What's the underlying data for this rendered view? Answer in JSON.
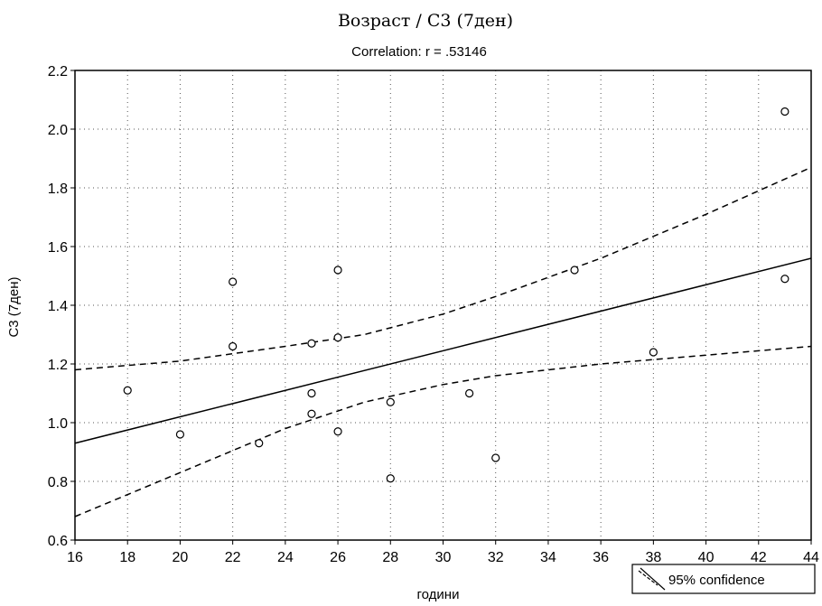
{
  "chart_data": {
    "type": "scatter",
    "title": "Возраст / С3 (7ден)",
    "subtitle": "Correlation: r = .53146",
    "xlabel": "години",
    "ylabel": "С3 (7ден)",
    "xlim": [
      16,
      44
    ],
    "ylim": [
      0.6,
      2.2
    ],
    "x_ticks": [
      16,
      18,
      20,
      22,
      24,
      26,
      28,
      30,
      32,
      34,
      36,
      38,
      40,
      42,
      44
    ],
    "y_ticks": [
      0.6,
      0.8,
      1.0,
      1.2,
      1.4,
      1.6,
      1.8,
      2.0,
      2.2
    ],
    "x_tick_labels": [
      "16",
      "18",
      "20",
      "22",
      "24",
      "26",
      "28",
      "30",
      "32",
      "34",
      "36",
      "38",
      "40",
      "42",
      "44"
    ],
    "y_tick_labels": [
      "0.6",
      "0.8",
      "1.0",
      "1.2",
      "1.4",
      "1.6",
      "1.8",
      "2.0",
      "2.2"
    ],
    "grid": true,
    "legend_position": "bottom-right",
    "legend": [
      {
        "label": "95% confidence"
      }
    ],
    "points": [
      {
        "x": 18,
        "y": 1.11
      },
      {
        "x": 20,
        "y": 0.96
      },
      {
        "x": 22,
        "y": 1.48
      },
      {
        "x": 22,
        "y": 1.26
      },
      {
        "x": 23,
        "y": 0.93
      },
      {
        "x": 25,
        "y": 1.27
      },
      {
        "x": 25,
        "y": 1.1
      },
      {
        "x": 25,
        "y": 1.03
      },
      {
        "x": 26,
        "y": 1.52
      },
      {
        "x": 26,
        "y": 1.29
      },
      {
        "x": 26,
        "y": 0.97
      },
      {
        "x": 28,
        "y": 1.07
      },
      {
        "x": 28,
        "y": 0.81
      },
      {
        "x": 31,
        "y": 1.1
      },
      {
        "x": 32,
        "y": 0.88
      },
      {
        "x": 35,
        "y": 1.52
      },
      {
        "x": 38,
        "y": 1.24
      },
      {
        "x": 43,
        "y": 2.06
      },
      {
        "x": 43,
        "y": 1.49
      }
    ],
    "regression_line": [
      {
        "x": 16,
        "y": 0.93
      },
      {
        "x": 44,
        "y": 1.56
      }
    ],
    "confidence_upper": [
      {
        "x": 16,
        "y": 1.18
      },
      {
        "x": 20,
        "y": 1.21
      },
      {
        "x": 24,
        "y": 1.26
      },
      {
        "x": 27,
        "y": 1.3
      },
      {
        "x": 30,
        "y": 1.37
      },
      {
        "x": 32,
        "y": 1.43
      },
      {
        "x": 36,
        "y": 1.56
      },
      {
        "x": 40,
        "y": 1.71
      },
      {
        "x": 44,
        "y": 1.87
      }
    ],
    "confidence_lower": [
      {
        "x": 16,
        "y": 0.68
      },
      {
        "x": 20,
        "y": 0.83
      },
      {
        "x": 24,
        "y": 0.98
      },
      {
        "x": 27,
        "y": 1.07
      },
      {
        "x": 30,
        "y": 1.13
      },
      {
        "x": 32,
        "y": 1.16
      },
      {
        "x": 36,
        "y": 1.2
      },
      {
        "x": 40,
        "y": 1.23
      },
      {
        "x": 44,
        "y": 1.26
      }
    ],
    "colors": {
      "points": "#000000",
      "line": "#000000",
      "grid": "#555555"
    }
  }
}
